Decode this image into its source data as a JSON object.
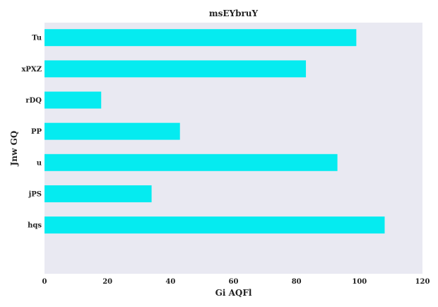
{
  "chart_data": {
    "type": "bar",
    "orientation": "horizontal",
    "title": "msEYbruY",
    "xlabel": "Gi AQFl",
    "ylabel": "Jnw GQ",
    "categories": [
      "Tu",
      "xPXZ",
      "rDQ",
      "PP",
      "u",
      "jPS",
      "hqs"
    ],
    "values": [
      99,
      83,
      18,
      43,
      93,
      34,
      108
    ],
    "xlim": [
      0,
      120
    ],
    "xticks": [
      0,
      20,
      40,
      60,
      80,
      100,
      120
    ],
    "grid": false,
    "legend": "none",
    "colors": {
      "bar": "#05ebf0",
      "plot_background": "#e9e9f2",
      "text": "#222222"
    }
  }
}
